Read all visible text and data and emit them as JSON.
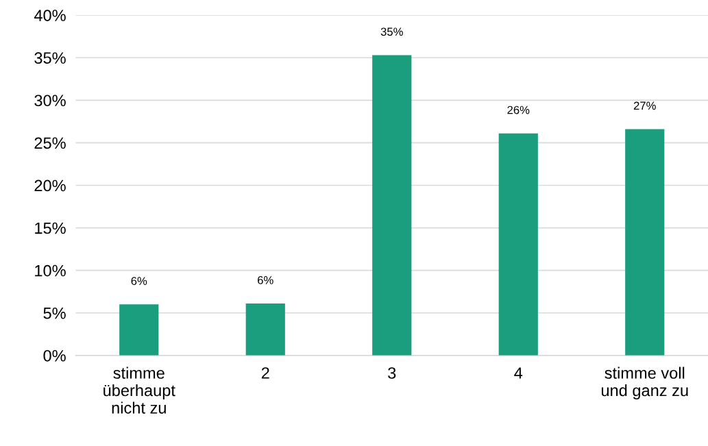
{
  "chart_data": {
    "type": "bar",
    "categories": [
      "stimme\nüberhaupt\nnicht zu",
      "2",
      "3",
      "4",
      "stimme voll\nund ganz zu"
    ],
    "values": [
      6.0,
      6.1,
      35.3,
      26.1,
      26.6
    ],
    "value_labels": [
      "6%",
      "6%",
      "35%",
      "26%",
      "27%"
    ],
    "color": "#1a9e7e",
    "ylim": [
      0,
      40
    ],
    "yticks": [
      {
        "value": 0,
        "label": "0%"
      },
      {
        "value": 5,
        "label": "5%"
      },
      {
        "value": 10,
        "label": "10%"
      },
      {
        "value": 15,
        "label": "15%"
      },
      {
        "value": 20,
        "label": "20%"
      },
      {
        "value": 25,
        "label": "25%"
      },
      {
        "value": 30,
        "label": "30%"
      },
      {
        "value": 35,
        "label": "35%"
      },
      {
        "value": 40,
        "label": "40%"
      }
    ],
    "grid": "y",
    "legend": false
  }
}
